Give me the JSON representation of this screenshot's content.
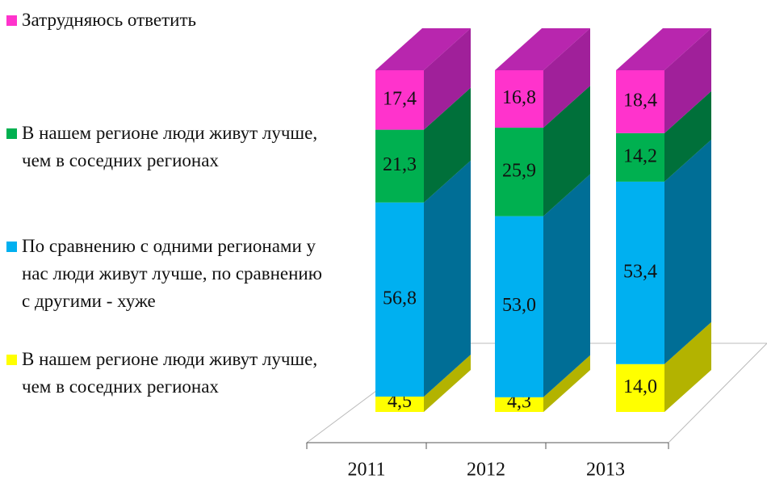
{
  "chart_data": {
    "type": "bar3d_stacked",
    "categories": [
      "2011",
      "2012",
      "2013"
    ],
    "series": [
      {
        "name": "В нашем регионе люди живут лучше, чем в соседних регионах",
        "color": "#ffff00",
        "side": "#b3b300",
        "values": [
          4.5,
          4.3,
          14.0
        ],
        "value_labels": [
          "4,5",
          "4,3",
          "14,0"
        ]
      },
      {
        "name": "По сравнению с одними регионами у нас люди живут лучше, по сравнению с другими - хуже",
        "color": "#00b0f0",
        "side": "#006e96",
        "values": [
          56.8,
          53.0,
          53.4
        ],
        "value_labels": [
          "56,8",
          "53,0",
          "53,4"
        ]
      },
      {
        "name": "В нашем регионе люди живут лучше, чем в соседних регионах",
        "color": "#00b050",
        "side": "#00703a",
        "values": [
          21.3,
          25.9,
          14.2
        ],
        "value_labels": [
          "21,3",
          "25,9",
          "14,2"
        ]
      },
      {
        "name": "Затрудняюсь ответить",
        "color": "#ff33cc",
        "side": "#a0209a",
        "top": "#b826ae",
        "values": [
          17.4,
          16.8,
          18.4
        ],
        "value_labels": [
          "17,4",
          "16,8",
          "18,4"
        ]
      }
    ]
  }
}
